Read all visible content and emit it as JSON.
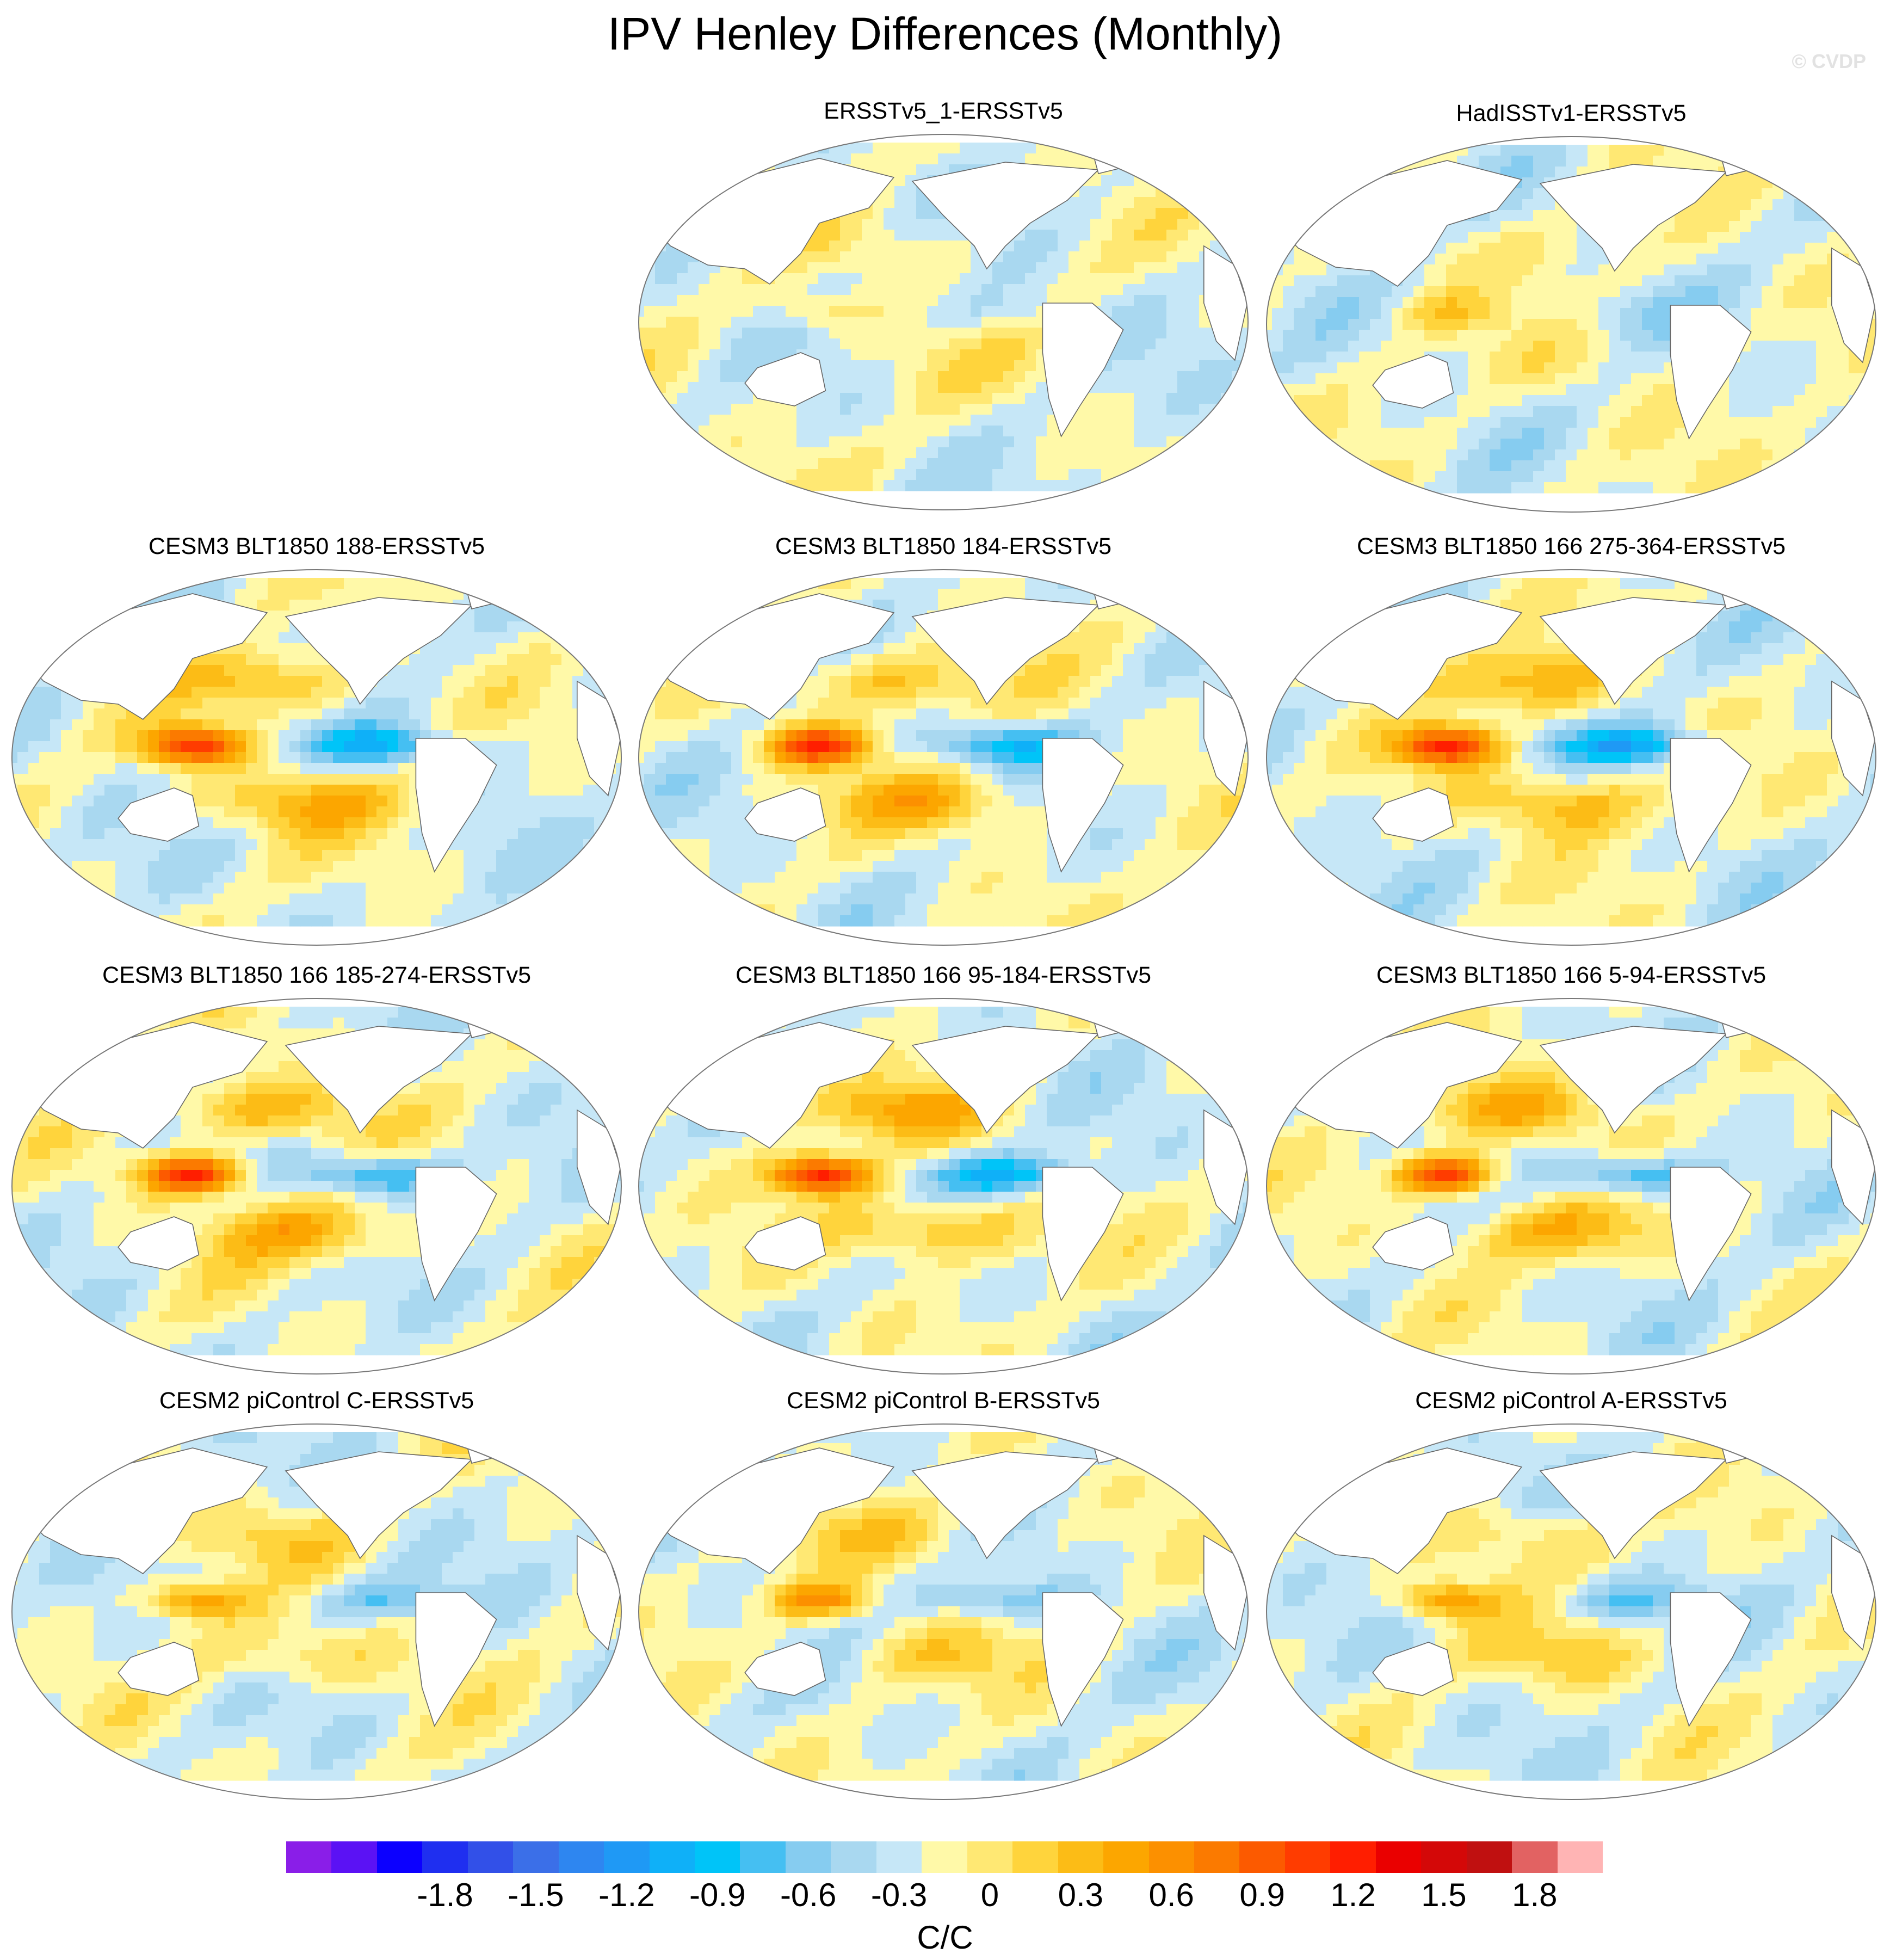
{
  "title": "IPV Henley Differences (Monthly)",
  "watermark": "© CVDP",
  "panels": [
    {
      "title": "ERSSTv5_1-ERSSTv5",
      "amp": 0.25,
      "seed": 1,
      "ncols": 1,
      "ncolpos": 0.3
    },
    {
      "title": "HadISSTv1-ERSSTv5",
      "amp": 0.25,
      "seed": 2,
      "ncols": 1,
      "ncolpos": 0.3
    },
    {
      "title": "CESM3 BLT1850 188-ERSSTv5",
      "amp": 1.0,
      "seed": 3,
      "ncols": 1,
      "ncolpos": 0.6
    },
    {
      "title": "CESM3 BLT1850 184-ERSSTv5",
      "amp": 1.0,
      "seed": 4,
      "ncols": 1,
      "ncolpos": 0.6
    },
    {
      "title": "CESM3 BLT1850 166 275-364-ERSSTv5",
      "amp": 1.05,
      "seed": 5,
      "ncols": 1,
      "ncolpos": 0.6
    },
    {
      "title": "CESM3 BLT1850 166 185-274-ERSSTv5",
      "amp": 1.1,
      "seed": 6,
      "ncols": 1,
      "ncolpos": 0.6
    },
    {
      "title": "CESM3 BLT1850 166 95-184-ERSSTv5",
      "amp": 1.1,
      "seed": 7,
      "ncols": 1,
      "ncolpos": 0.6
    },
    {
      "title": "CESM3 BLT1850 166 5-94-ERSSTv5",
      "amp": 1.05,
      "seed": 8,
      "ncols": 1,
      "ncolpos": 0.6
    },
    {
      "title": "CESM2 piControl C-ERSSTv5",
      "amp": 0.6,
      "seed": 9,
      "ncols": 1,
      "ncolpos": 0.3
    },
    {
      "title": "CESM2 piControl B-ERSSTv5",
      "amp": 0.6,
      "seed": 10,
      "ncols": 1,
      "ncolpos": 0.3
    },
    {
      "title": "CESM2 piControl A-ERSSTv5",
      "amp": 0.6,
      "seed": 11,
      "ncols": 1,
      "ncolpos": 0.3
    }
  ],
  "colorbar": {
    "colors": [
      "#8a1ee8",
      "#5b12f4",
      "#0c00ff",
      "#1f2ff0",
      "#3250e8",
      "#3b6fe8",
      "#2e86f0",
      "#1f99f5",
      "#0fb0f8",
      "#00c4f8",
      "#45bff2",
      "#86ccf0",
      "#a9d8f0",
      "#c6e7f7",
      "#fff9a8",
      "#ffe873",
      "#ffd43c",
      "#fcbc16",
      "#fca600",
      "#fc9000",
      "#fb7a00",
      "#fc5a00",
      "#ff3c00",
      "#ff1e00",
      "#ea0000",
      "#d40808",
      "#c01010",
      "#e26262",
      "#ffb4b4"
    ],
    "tick_labels": [
      "-1.8",
      "-1.5",
      "-1.2",
      "-0.9",
      "-0.6",
      "-0.3",
      "0",
      "0.3",
      "0.6",
      "0.9",
      "1.2",
      "1.5",
      "1.8"
    ],
    "units": "C/C"
  }
}
